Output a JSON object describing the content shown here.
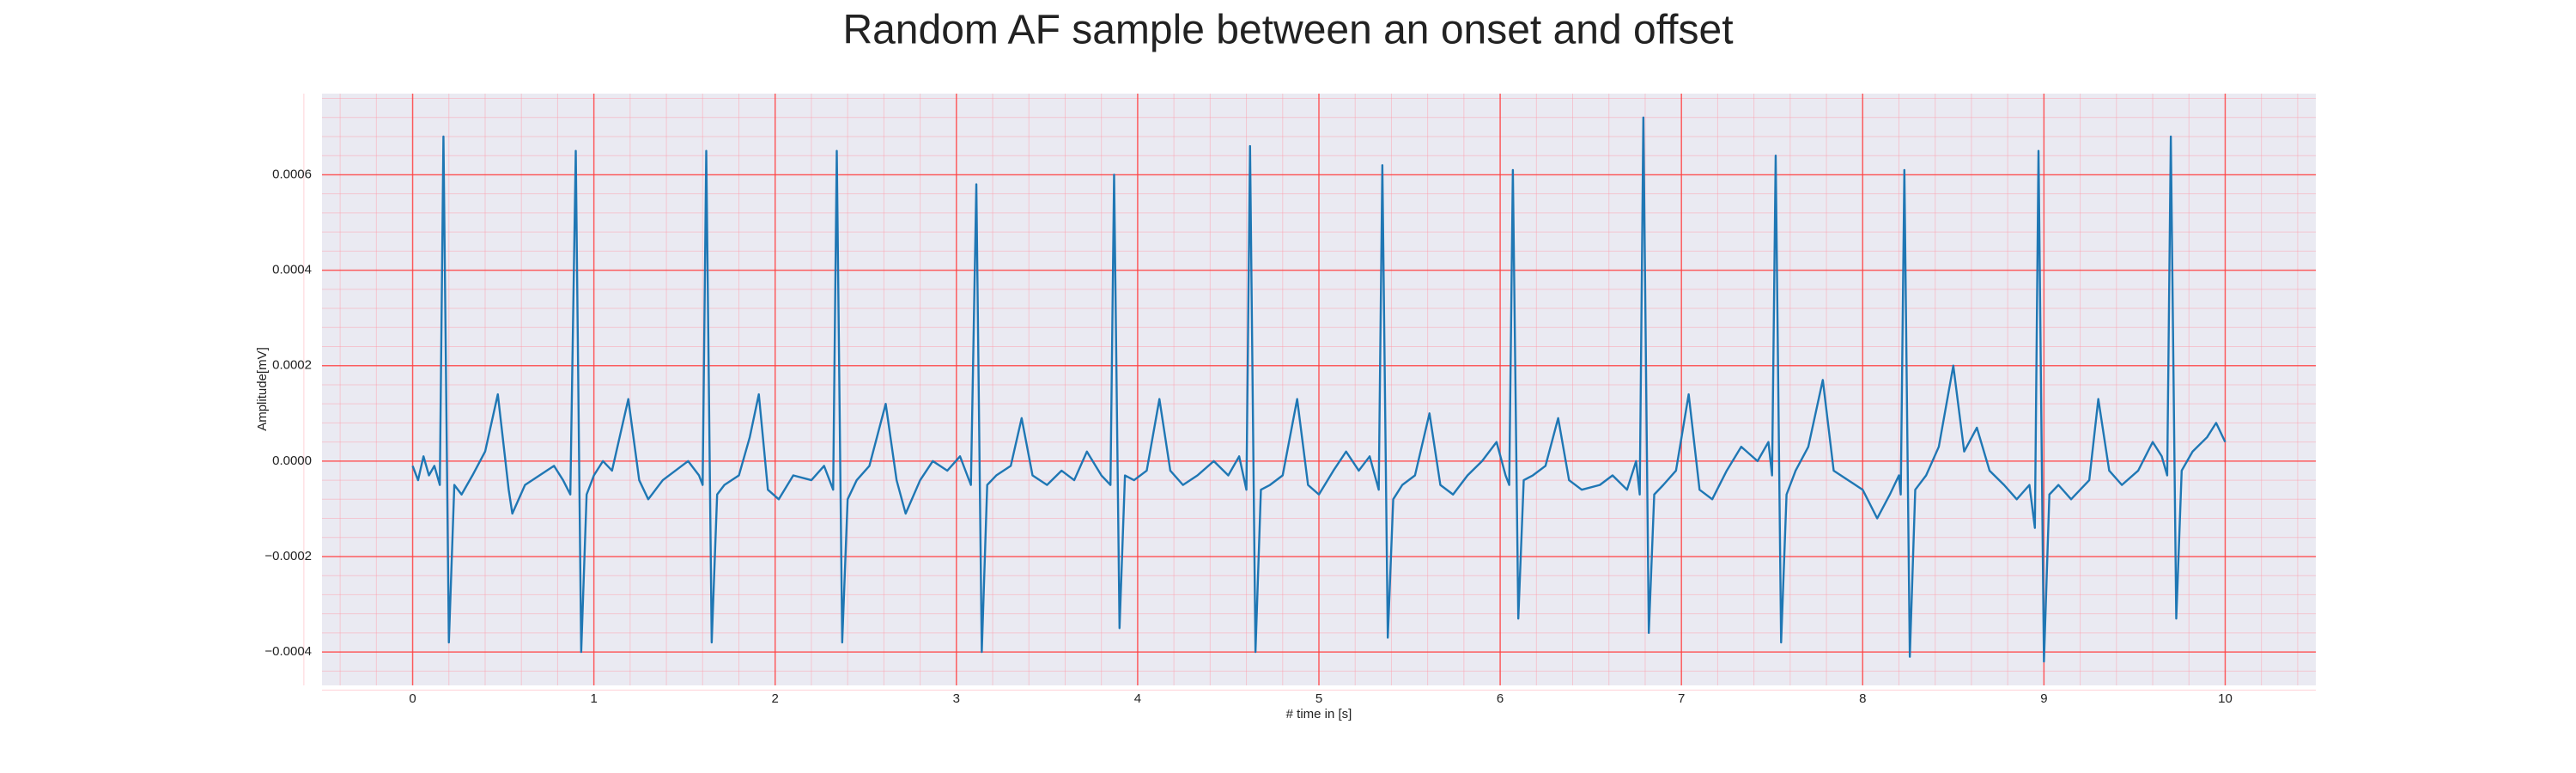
{
  "chart_data": {
    "type": "line",
    "title": "Random AF sample between an onset and offset",
    "xlabel": "# time in [s]",
    "ylabel": "Amplitude[mV]",
    "color": "#1f77b4",
    "grid": true,
    "minor_grid": true,
    "xlim": [
      -0.5,
      10.5
    ],
    "ylim": [
      -0.00047,
      0.00077
    ],
    "xticks": [
      0,
      1,
      2,
      3,
      4,
      5,
      6,
      7,
      8,
      9,
      10
    ],
    "yticks": [
      {
        "value": -0.0004,
        "label": "−0.0004"
      },
      {
        "value": -0.0002,
        "label": "−0.0002"
      },
      {
        "value": 0,
        "label": "0.0000"
      },
      {
        "value": 0.0002,
        "label": "0.0002"
      },
      {
        "value": 0.0004,
        "label": "0.0004"
      },
      {
        "value": 0.0006,
        "label": "0.0006"
      }
    ],
    "x": [
      0,
      0.03,
      0.06,
      0.09,
      0.12,
      0.15,
      0.17,
      0.2,
      0.23,
      0.27,
      0.33,
      0.4,
      0.47,
      0.53,
      0.55,
      0.62,
      0.7,
      0.78,
      0.83,
      0.87,
      0.9,
      0.93,
      0.96,
      1.0,
      1.05,
      1.1,
      1.19,
      1.25,
      1.3,
      1.38,
      1.45,
      1.52,
      1.58,
      1.6,
      1.62,
      1.65,
      1.68,
      1.72,
      1.8,
      1.86,
      1.91,
      1.96,
      2.02,
      2.1,
      2.2,
      2.27,
      2.32,
      2.34,
      2.37,
      2.4,
      2.45,
      2.52,
      2.61,
      2.67,
      2.72,
      2.8,
      2.87,
      2.95,
      3.02,
      3.08,
      3.11,
      3.14,
      3.17,
      3.22,
      3.3,
      3.36,
      3.42,
      3.5,
      3.58,
      3.65,
      3.72,
      3.8,
      3.85,
      3.87,
      3.9,
      3.93,
      3.98,
      4.05,
      4.12,
      4.18,
      4.25,
      4.33,
      4.42,
      4.5,
      4.56,
      4.6,
      4.62,
      4.65,
      4.68,
      4.73,
      4.8,
      4.88,
      4.94,
      5.0,
      5.08,
      5.15,
      5.22,
      5.28,
      5.33,
      5.35,
      5.38,
      5.41,
      5.46,
      5.53,
      5.61,
      5.67,
      5.74,
      5.82,
      5.9,
      5.98,
      6.03,
      6.05,
      6.07,
      6.1,
      6.13,
      6.18,
      6.25,
      6.32,
      6.38,
      6.45,
      6.55,
      6.62,
      6.7,
      6.75,
      6.77,
      6.79,
      6.82,
      6.85,
      6.9,
      6.97,
      7.04,
      7.1,
      7.17,
      7.25,
      7.33,
      7.42,
      7.48,
      7.5,
      7.52,
      7.55,
      7.58,
      7.63,
      7.7,
      7.78,
      7.84,
      7.92,
      8.0,
      8.08,
      8.15,
      8.2,
      8.21,
      8.23,
      8.26,
      8.29,
      8.35,
      8.42,
      8.5,
      8.56,
      8.63,
      8.7,
      8.78,
      8.85,
      8.92,
      8.95,
      8.97,
      9.0,
      9.03,
      9.08,
      9.15,
      9.25,
      9.3,
      9.36,
      9.43,
      9.52,
      9.6,
      9.65,
      9.68,
      9.7,
      9.73,
      9.76,
      9.82,
      9.9,
      9.95,
      10.0
    ],
    "values": [
      -1e-05,
      -4e-05,
      1e-05,
      -3e-05,
      -1e-05,
      -5e-05,
      0.00068,
      -0.00038,
      -5e-05,
      -7e-05,
      -3e-05,
      2e-05,
      0.00014,
      -6e-05,
      -0.00011,
      -5e-05,
      -3e-05,
      -1e-05,
      -4e-05,
      -7e-05,
      0.00065,
      -0.0004,
      -7e-05,
      -3e-05,
      0,
      -2e-05,
      0.00013,
      -4e-05,
      -8e-05,
      -4e-05,
      -2e-05,
      0,
      -3e-05,
      -5e-05,
      0.00065,
      -0.00038,
      -7e-05,
      -5e-05,
      -3e-05,
      5e-05,
      0.00014,
      -6e-05,
      -8e-05,
      -3e-05,
      -4e-05,
      -1e-05,
      -6e-05,
      0.00065,
      -0.00038,
      -8e-05,
      -4e-05,
      -1e-05,
      0.00012,
      -4e-05,
      -0.00011,
      -4e-05,
      0,
      -2e-05,
      1e-05,
      -5e-05,
      0.00058,
      -0.0004,
      -5e-05,
      -3e-05,
      -1e-05,
      9e-05,
      -3e-05,
      -5e-05,
      -2e-05,
      -4e-05,
      2e-05,
      -3e-05,
      -5e-05,
      0.0006,
      -0.00035,
      -3e-05,
      -4e-05,
      -2e-05,
      0.00013,
      -2e-05,
      -5e-05,
      -3e-05,
      0,
      -3e-05,
      1e-05,
      -6e-05,
      0.00066,
      -0.0004,
      -6e-05,
      -5e-05,
      -3e-05,
      0.00013,
      -5e-05,
      -7e-05,
      -2e-05,
      2e-05,
      -2e-05,
      1e-05,
      -6e-05,
      0.00062,
      -0.00037,
      -8e-05,
      -5e-05,
      -3e-05,
      0.0001,
      -5e-05,
      -7e-05,
      -3e-05,
      0,
      4e-05,
      -3e-05,
      -5e-05,
      0.00061,
      -0.00033,
      -4e-05,
      -3e-05,
      -1e-05,
      9e-05,
      -4e-05,
      -6e-05,
      -5e-05,
      -3e-05,
      -6e-05,
      0,
      -7e-05,
      0.00072,
      -0.00036,
      -7e-05,
      -5e-05,
      -2e-05,
      0.00014,
      -6e-05,
      -8e-05,
      -2e-05,
      3e-05,
      0,
      4e-05,
      -3e-05,
      0.00064,
      -0.00038,
      -7e-05,
      -2e-05,
      3e-05,
      0.00017,
      -2e-05,
      -4e-05,
      -6e-05,
      -0.00012,
      -7e-05,
      -3e-05,
      -7e-05,
      0.00061,
      -0.00041,
      -6e-05,
      -3e-05,
      3e-05,
      0.0002,
      2e-05,
      7e-05,
      -2e-05,
      -5e-05,
      -8e-05,
      -5e-05,
      -0.00014,
      0.00065,
      -0.00042,
      -7e-05,
      -5e-05,
      -8e-05,
      -4e-05,
      0.00013,
      -2e-05,
      -5e-05,
      -2e-05,
      4e-05,
      1e-05,
      -3e-05,
      0.00068,
      -0.00033,
      -2e-05,
      2e-05,
      5e-05,
      8e-05,
      4e-05
    ]
  }
}
